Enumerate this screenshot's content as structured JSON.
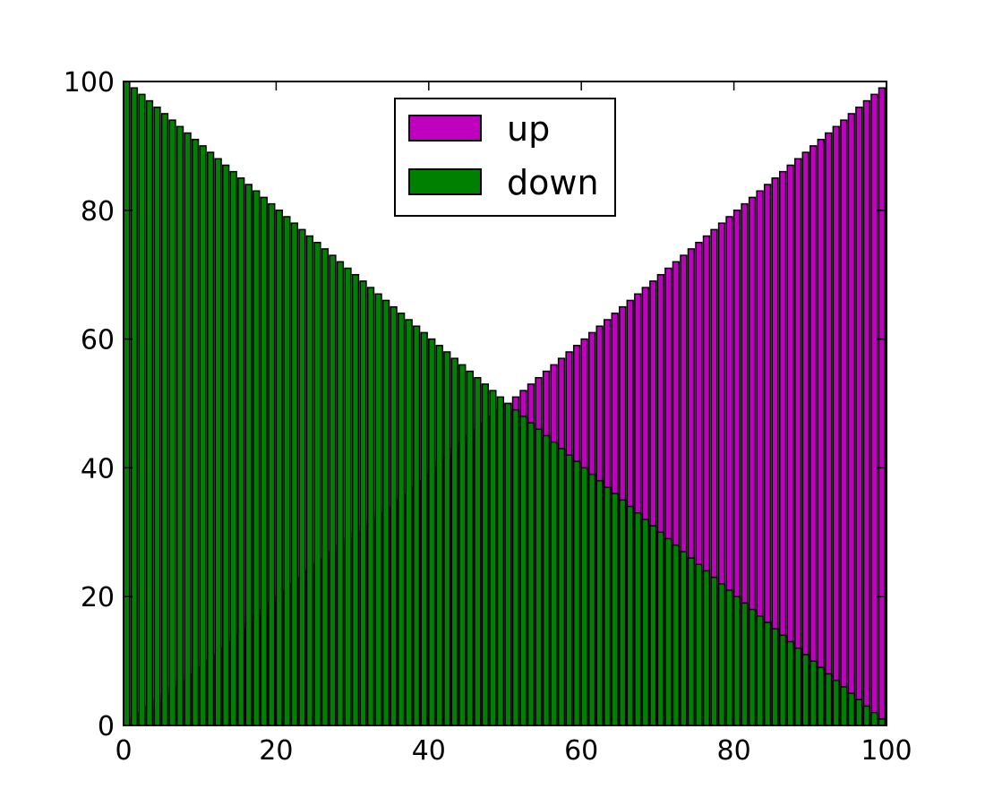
{
  "chart_data": {
    "type": "bar",
    "stacked": false,
    "title": "",
    "xlabel": "",
    "ylabel": "",
    "xlim": [
      0,
      100
    ],
    "ylim": [
      0,
      100
    ],
    "grid": false,
    "legend_position": "top-center",
    "bar_count": 100,
    "x": [
      0,
      1,
      2,
      3,
      4,
      5,
      6,
      7,
      8,
      9,
      10,
      11,
      12,
      13,
      14,
      15,
      16,
      17,
      18,
      19,
      20,
      21,
      22,
      23,
      24,
      25,
      26,
      27,
      28,
      29,
      30,
      31,
      32,
      33,
      34,
      35,
      36,
      37,
      38,
      39,
      40,
      41,
      42,
      43,
      44,
      45,
      46,
      47,
      48,
      49,
      50,
      51,
      52,
      53,
      54,
      55,
      56,
      57,
      58,
      59,
      60,
      61,
      62,
      63,
      64,
      65,
      66,
      67,
      68,
      69,
      70,
      71,
      72,
      73,
      74,
      75,
      76,
      77,
      78,
      79,
      80,
      81,
      82,
      83,
      84,
      85,
      86,
      87,
      88,
      89,
      90,
      91,
      92,
      93,
      94,
      95,
      96,
      97,
      98,
      99
    ],
    "series": [
      {
        "name": "up",
        "color": "#bf00bf",
        "values": [
          0,
          1,
          2,
          3,
          4,
          5,
          6,
          7,
          8,
          9,
          10,
          11,
          12,
          13,
          14,
          15,
          16,
          17,
          18,
          19,
          20,
          21,
          22,
          23,
          24,
          25,
          26,
          27,
          28,
          29,
          30,
          31,
          32,
          33,
          34,
          35,
          36,
          37,
          38,
          39,
          40,
          41,
          42,
          43,
          44,
          45,
          46,
          47,
          48,
          49,
          50,
          51,
          52,
          53,
          54,
          55,
          56,
          57,
          58,
          59,
          60,
          61,
          62,
          63,
          64,
          65,
          66,
          67,
          68,
          69,
          70,
          71,
          72,
          73,
          74,
          75,
          76,
          77,
          78,
          79,
          80,
          81,
          82,
          83,
          84,
          85,
          86,
          87,
          88,
          89,
          90,
          91,
          92,
          93,
          94,
          95,
          96,
          97,
          98,
          99
        ]
      },
      {
        "name": "down",
        "color": "#008000",
        "values": [
          100,
          99,
          98,
          97,
          96,
          95,
          94,
          93,
          92,
          91,
          90,
          89,
          88,
          87,
          86,
          85,
          84,
          83,
          82,
          81,
          80,
          79,
          78,
          77,
          76,
          75,
          74,
          73,
          72,
          71,
          70,
          69,
          68,
          67,
          66,
          65,
          64,
          63,
          62,
          61,
          60,
          59,
          58,
          57,
          56,
          55,
          54,
          53,
          52,
          51,
          50,
          49,
          48,
          47,
          46,
          45,
          44,
          43,
          42,
          41,
          40,
          39,
          38,
          37,
          36,
          35,
          34,
          33,
          32,
          31,
          30,
          29,
          28,
          27,
          26,
          25,
          24,
          23,
          22,
          21,
          20,
          19,
          18,
          17,
          16,
          15,
          14,
          13,
          12,
          11,
          10,
          9,
          8,
          7,
          6,
          5,
          4,
          3,
          2,
          1
        ]
      }
    ],
    "x_ticks": [
      0,
      20,
      40,
      60,
      80,
      100
    ],
    "y_ticks": [
      0,
      20,
      40,
      60,
      80,
      100
    ],
    "x_tick_labels": [
      "0",
      "20",
      "40",
      "60",
      "80",
      "100"
    ],
    "y_tick_labels": [
      "0",
      "20",
      "40",
      "60",
      "80",
      "100"
    ]
  }
}
